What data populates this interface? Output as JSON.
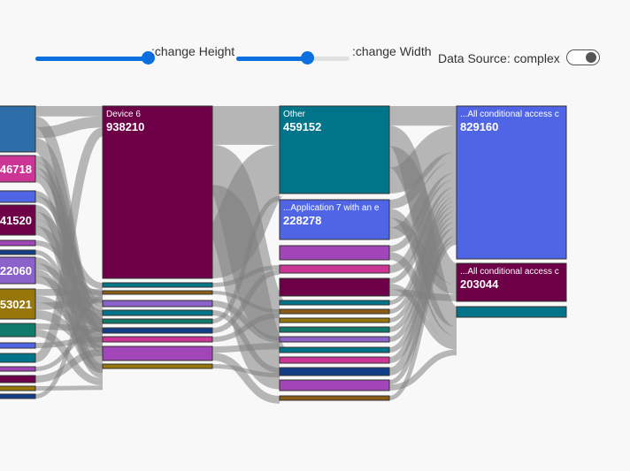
{
  "controls": {
    "height_label": ":change Height",
    "width_label": ":change Width",
    "height_value": 1.0,
    "width_value": 0.63,
    "data_source_label": "Data Source: complex",
    "data_source_on": true
  },
  "colors": {
    "link": "#808080",
    "blue": "#5065e6",
    "maroon": "#6e0047",
    "teal": "#00758a",
    "purple": "#a245b8",
    "magenta": "#cc3595",
    "steel": "#2d6ea8",
    "lavender": "#8b62c9",
    "olive": "#98770a",
    "navy": "#123e87",
    "green": "#107a6b",
    "brown": "#8a5c16"
  },
  "sankey": {
    "visible_labels": [
      {
        "name": "",
        "value": "46718"
      },
      {
        "name": "",
        "value": "41520"
      },
      {
        "name": "",
        "value": "22060"
      },
      {
        "name": "",
        "value": "53021"
      },
      {
        "name": "Device 6",
        "value": "938210"
      },
      {
        "name": "Other",
        "value": "459152"
      },
      {
        "name": "...Application 7 with an e",
        "value": "228278"
      },
      {
        "name": "...All conditional access c",
        "value": "829160"
      },
      {
        "name": "...All conditional access c",
        "value": "203044"
      }
    ]
  }
}
